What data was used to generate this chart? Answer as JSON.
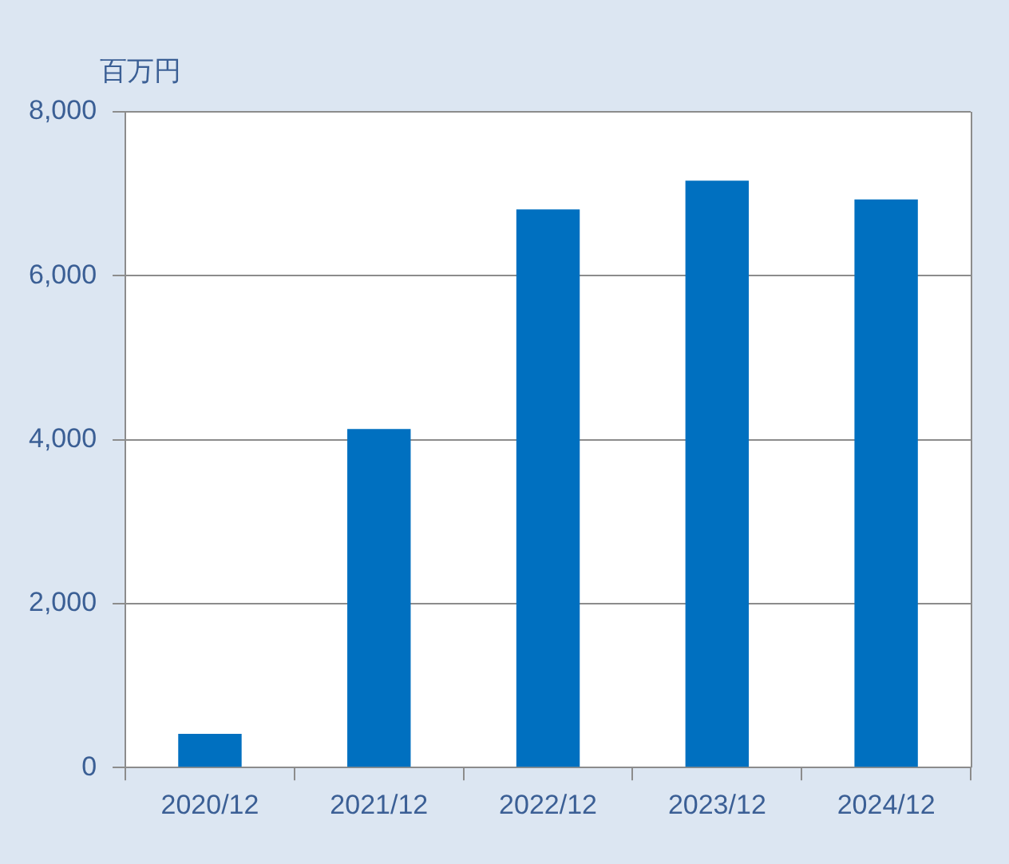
{
  "chart_data": {
    "type": "bar",
    "ylabel": "百万円",
    "categories": [
      "2020/12",
      "2021/12",
      "2022/12",
      "2023/12",
      "2024/12"
    ],
    "values": [
      410,
      4130,
      6810,
      7160,
      6930
    ],
    "color": "#0070c0",
    "ylim": [
      0,
      8000
    ],
    "yticks": [
      {
        "value": 0,
        "label": "0"
      },
      {
        "value": 2000,
        "label": "2,000"
      },
      {
        "value": 4000,
        "label": "4,000"
      },
      {
        "value": 6000,
        "label": "6,000"
      },
      {
        "value": 8000,
        "label": "8,000"
      }
    ],
    "grid": "y",
    "legend": false
  }
}
